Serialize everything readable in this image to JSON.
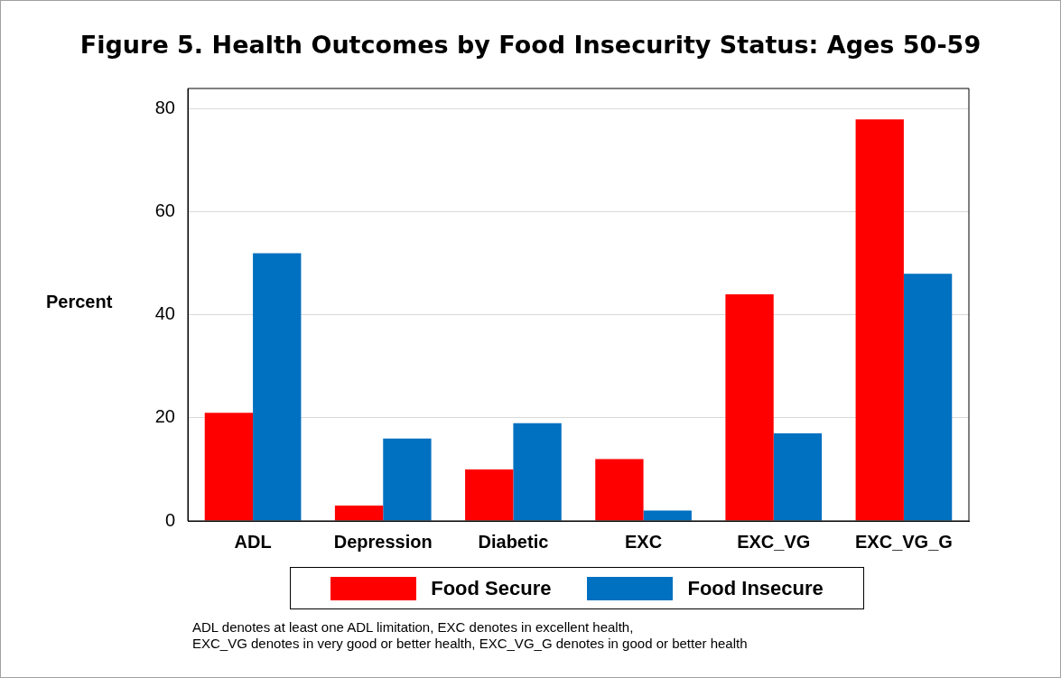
{
  "chart_data": {
    "type": "bar",
    "title": "Figure 5. Health Outcomes by Food Insecurity Status: Ages 50-59",
    "ylabel": "Percent",
    "categories": [
      "ADL",
      "Depression",
      "Diabetic",
      "EXC",
      "EXC_VG",
      "EXC_VG_G"
    ],
    "series": [
      {
        "name": "Food Secure",
        "color": "#ff0000",
        "values": [
          21,
          3,
          10,
          12,
          44,
          78
        ]
      },
      {
        "name": "Food Insecure",
        "color": "#0070c0",
        "values": [
          52,
          16,
          19,
          2,
          17,
          48
        ]
      }
    ],
    "ylim": [
      0,
      84
    ],
    "yticks": [
      0,
      20,
      40,
      60,
      80
    ],
    "grid": "y",
    "legend": "bottom",
    "annotations": [
      "ADL denotes at least one ADL limitation, EXC denotes in excellent health,",
      "EXC_VG denotes in very good or better health, EXC_VG_G denotes in good or better health"
    ]
  }
}
